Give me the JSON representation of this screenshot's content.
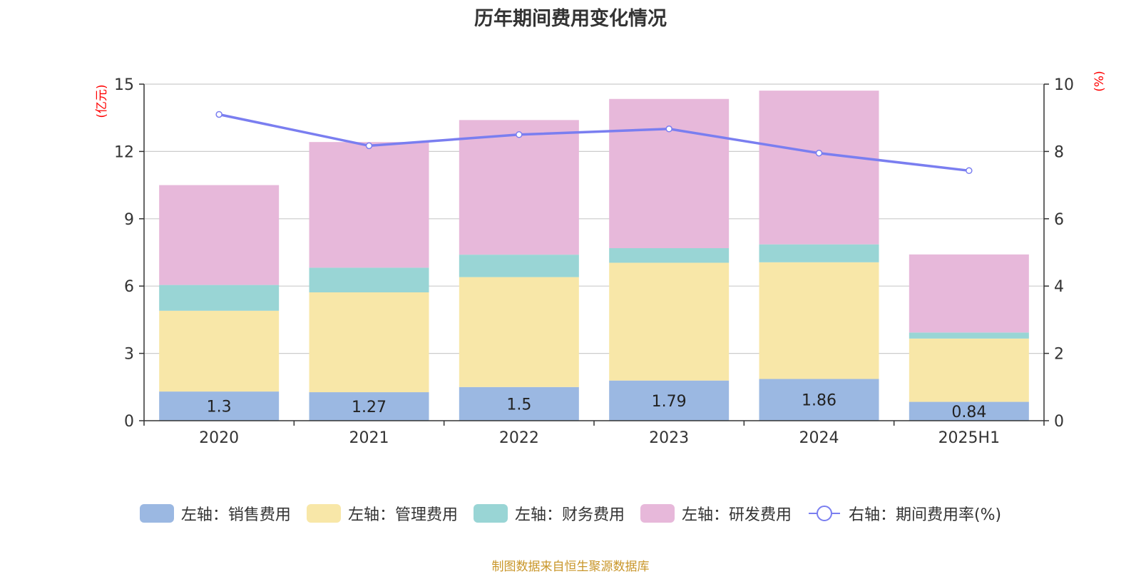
{
  "chart_data": {
    "type": "bar",
    "title": "历年期间费用变化情况",
    "categories": [
      "2020",
      "2021",
      "2022",
      "2023",
      "2024",
      "2025H1"
    ],
    "series": [
      {
        "name": "左轴：销售费用",
        "axis": "left",
        "kind": "bar",
        "color": "#9bb8e2",
        "values": [
          1.3,
          1.27,
          1.5,
          1.79,
          1.86,
          0.84
        ],
        "labels": [
          "1.3",
          "1.27",
          "1.5",
          "1.79",
          "1.86",
          "0.84"
        ]
      },
      {
        "name": "左轴：管理费用",
        "axis": "left",
        "kind": "bar",
        "color": "#f8e7a8",
        "values": [
          3.6,
          4.45,
          4.9,
          5.25,
          5.2,
          2.82
        ]
      },
      {
        "name": "左轴：财务费用",
        "axis": "left",
        "kind": "bar",
        "color": "#99d5d5",
        "values": [
          1.15,
          1.1,
          1.0,
          0.65,
          0.8,
          0.27
        ]
      },
      {
        "name": "左轴：研发费用",
        "axis": "left",
        "kind": "bar",
        "color": "#e7b8da",
        "values": [
          4.45,
          5.6,
          6.0,
          6.65,
          6.85,
          3.48
        ]
      },
      {
        "name": "右轴：期间费用率(%)",
        "axis": "right",
        "kind": "line",
        "color": "#7a7ef0",
        "values": [
          9.1,
          8.17,
          8.5,
          8.67,
          7.95,
          7.43
        ]
      }
    ],
    "left_axis": {
      "unit": "(亿元)",
      "min": 0,
      "max": 15,
      "ticks": [
        0,
        3,
        6,
        9,
        12,
        15
      ]
    },
    "right_axis": {
      "unit": "(%)",
      "min": 0,
      "max": 10,
      "ticks": [
        0,
        2,
        4,
        6,
        8,
        10
      ]
    },
    "grid": true,
    "legend_position": "bottom",
    "source_text": "制图数据来自恒生聚源数据库"
  }
}
